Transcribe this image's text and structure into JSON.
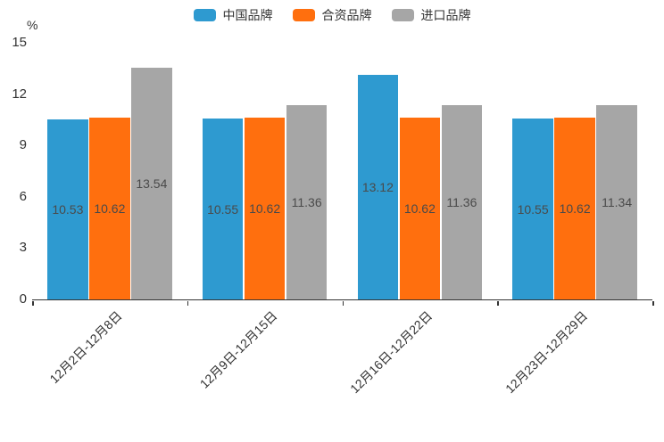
{
  "chart_data": {
    "type": "bar",
    "title": "",
    "categories": [
      "12月2日-12月8日",
      "12月9日-12月15日",
      "12月16日-12月22日",
      "12月23日-12月29日"
    ],
    "series": [
      {
        "name": "中国品牌",
        "color": "#2E9AD0",
        "values": [
          10.53,
          10.55,
          13.12,
          10.55
        ]
      },
      {
        "name": "合资品牌",
        "color": "#FF6F0E",
        "values": [
          10.62,
          10.62,
          10.62,
          10.62
        ]
      },
      {
        "name": "进口品牌",
        "color": "#A6A6A6",
        "values": [
          13.54,
          11.36,
          11.36,
          11.34
        ]
      }
    ],
    "y_axis": {
      "label": "%",
      "min": 0,
      "max": 15,
      "ticks": [
        0,
        3,
        6,
        9,
        12,
        15
      ]
    },
    "legend_position": "top",
    "grid": false,
    "value_labels": "inside-center",
    "colors": {
      "axis": "#333333",
      "tick_text": "#333333",
      "value_label_text": "#4a4a4a",
      "background": "#ffffff"
    }
  }
}
